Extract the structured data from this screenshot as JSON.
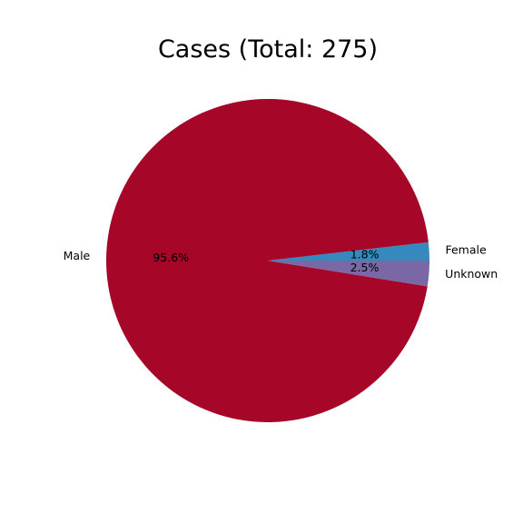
{
  "chart_data": {
    "type": "pie",
    "title": "Cases (Total: 275)",
    "start_angle_deg": 0,
    "direction": "counterclockwise",
    "slices": [
      {
        "label": "Female",
        "value": 5,
        "percent_label": "1.8%",
        "color": "#348abd"
      },
      {
        "label": "Male",
        "value": 263,
        "percent_label": "95.6%",
        "color": "#a60628"
      },
      {
        "label": "Unknown",
        "value": 7,
        "percent_label": "2.5%",
        "color": "#7a68a6"
      }
    ]
  }
}
